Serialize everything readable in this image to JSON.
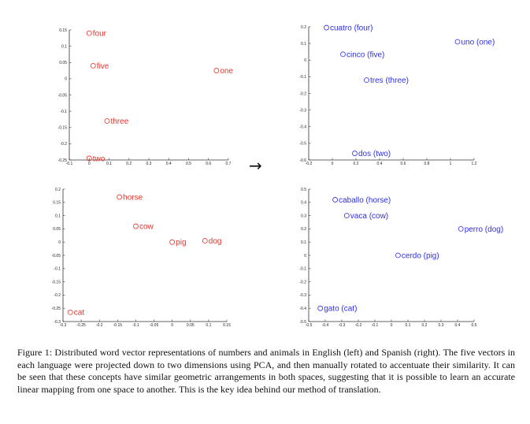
{
  "caption": "Figure 1: Distributed word vector representations of numbers and animals in English (left) and Spanish (right). The five vectors in each language were projected down to two dimensions using PCA, and then manually rotated to accentuate their similarity. It can be seen that these concepts have similar geometric arrangements in both spaces, suggesting that it is possible to learn an accurate linear mapping from one space to another. This is the key idea behind our method of translation.",
  "arrow_symbol": "→",
  "chart_data": [
    {
      "type": "scatter",
      "color": "#e8322a",
      "xlim": [
        -0.1,
        0.7
      ],
      "ylim": [
        -0.25,
        0.15
      ],
      "xticks": [
        {
          "v": -0.1,
          "t": "-0.1"
        },
        {
          "v": 0,
          "t": "0"
        },
        {
          "v": 0.1,
          "t": "0.1"
        },
        {
          "v": 0.2,
          "t": "0.2"
        },
        {
          "v": 0.3,
          "t": "0.3"
        },
        {
          "v": 0.4,
          "t": "0.4"
        },
        {
          "v": 0.5,
          "t": "0.5"
        },
        {
          "v": 0.6,
          "t": "0.6"
        },
        {
          "v": 0.7,
          "t": "0.7"
        }
      ],
      "yticks": [
        {
          "v": -0.25,
          "t": "-0.25"
        },
        {
          "v": -0.2,
          "t": "-0.2"
        },
        {
          "v": -0.15,
          "t": "-0.15"
        },
        {
          "v": -0.1,
          "t": "-0.1"
        },
        {
          "v": -0.05,
          "t": "-0.05"
        },
        {
          "v": 0,
          "t": "0"
        },
        {
          "v": 0.05,
          "t": "0.05"
        },
        {
          "v": 0.1,
          "t": "0.1"
        },
        {
          "v": 0.15,
          "t": "0.15"
        }
      ],
      "points": [
        {
          "label": "four",
          "x": 0.0,
          "y": 0.14
        },
        {
          "label": "five",
          "x": 0.02,
          "y": 0.04
        },
        {
          "label": "one",
          "x": 0.64,
          "y": 0.025
        },
        {
          "label": "three",
          "x": 0.09,
          "y": -0.13
        },
        {
          "label": "two",
          "x": 0.0,
          "y": -0.245
        }
      ]
    },
    {
      "type": "scatter",
      "color": "#2e2ee6",
      "xlim": [
        -0.2,
        1.2
      ],
      "ylim": [
        -0.6,
        0.2
      ],
      "xticks": [
        {
          "v": -0.2,
          "t": "-0.2"
        },
        {
          "v": 0,
          "t": "0"
        },
        {
          "v": 0.2,
          "t": "0.2"
        },
        {
          "v": 0.4,
          "t": "0.4"
        },
        {
          "v": 0.6,
          "t": "0.6"
        },
        {
          "v": 0.8,
          "t": "0.8"
        },
        {
          "v": 1,
          "t": "1"
        },
        {
          "v": 1.2,
          "t": "1.2"
        }
      ],
      "yticks": [
        {
          "v": -0.6,
          "t": "-0.6"
        },
        {
          "v": -0.5,
          "t": "-0.5"
        },
        {
          "v": -0.4,
          "t": "-0.4"
        },
        {
          "v": -0.3,
          "t": "-0.3"
        },
        {
          "v": -0.2,
          "t": "-0.2"
        },
        {
          "v": -0.1,
          "t": "-0.1"
        },
        {
          "v": 0,
          "t": "0"
        },
        {
          "v": 0.1,
          "t": "0.1"
        },
        {
          "v": 0.2,
          "t": "0.2"
        }
      ],
      "points": [
        {
          "label": "cuatro (four)",
          "x": -0.05,
          "y": 0.195
        },
        {
          "label": "uno (one)",
          "x": 1.06,
          "y": 0.11
        },
        {
          "label": "cinco (five)",
          "x": 0.09,
          "y": 0.035
        },
        {
          "label": "tres (three)",
          "x": 0.29,
          "y": -0.12
        },
        {
          "label": "dos (two)",
          "x": 0.19,
          "y": -0.56
        }
      ]
    },
    {
      "type": "scatter",
      "color": "#e8322a",
      "xlim": [
        -0.3,
        0.15
      ],
      "ylim": [
        -0.3,
        0.2
      ],
      "xticks": [
        {
          "v": -0.3,
          "t": "-0.3"
        },
        {
          "v": -0.25,
          "t": "-0.25"
        },
        {
          "v": -0.2,
          "t": "-0.2"
        },
        {
          "v": -0.15,
          "t": "-0.15"
        },
        {
          "v": -0.1,
          "t": "-0.1"
        },
        {
          "v": -0.05,
          "t": "-0.05"
        },
        {
          "v": 0,
          "t": "0"
        },
        {
          "v": 0.05,
          "t": "0.05"
        },
        {
          "v": 0.1,
          "t": "0.1"
        },
        {
          "v": 0.15,
          "t": "0.15"
        }
      ],
      "yticks": [
        {
          "v": -0.3,
          "t": "-0.3"
        },
        {
          "v": -0.25,
          "t": "-0.25"
        },
        {
          "v": -0.2,
          "t": "-0.2"
        },
        {
          "v": -0.15,
          "t": "-0.15"
        },
        {
          "v": -0.1,
          "t": "-0.1"
        },
        {
          "v": -0.05,
          "t": "-0.05"
        },
        {
          "v": 0,
          "t": "0"
        },
        {
          "v": 0.05,
          "t": "0.05"
        },
        {
          "v": 0.1,
          "t": "0.1"
        },
        {
          "v": 0.15,
          "t": "0.15"
        },
        {
          "v": 0.2,
          "t": "0.2"
        }
      ],
      "points": [
        {
          "label": "horse",
          "x": -0.145,
          "y": 0.17
        },
        {
          "label": "cow",
          "x": -0.1,
          "y": 0.06
        },
        {
          "label": "pig",
          "x": 0.0,
          "y": 0.0
        },
        {
          "label": "dog",
          "x": 0.09,
          "y": 0.005
        },
        {
          "label": "cat",
          "x": -0.28,
          "y": -0.265
        }
      ]
    },
    {
      "type": "scatter",
      "color": "#2e2ee6",
      "xlim": [
        -0.5,
        0.5
      ],
      "ylim": [
        -0.5,
        0.5
      ],
      "xticks": [
        {
          "v": -0.5,
          "t": "-0.5"
        },
        {
          "v": -0.4,
          "t": "-0.4"
        },
        {
          "v": -0.3,
          "t": "-0.3"
        },
        {
          "v": -0.2,
          "t": "-0.2"
        },
        {
          "v": -0.1,
          "t": "-0.1"
        },
        {
          "v": 0,
          "t": "0"
        },
        {
          "v": 0.1,
          "t": "0.1"
        },
        {
          "v": 0.2,
          "t": "0.2"
        },
        {
          "v": 0.3,
          "t": "0.3"
        },
        {
          "v": 0.4,
          "t": "0.4"
        },
        {
          "v": 0.5,
          "t": "0.5"
        }
      ],
      "yticks": [
        {
          "v": -0.5,
          "t": "-0.5"
        },
        {
          "v": -0.4,
          "t": "-0.4"
        },
        {
          "v": -0.3,
          "t": "-0.3"
        },
        {
          "v": -0.2,
          "t": "-0.2"
        },
        {
          "v": -0.1,
          "t": "-0.1"
        },
        {
          "v": 0,
          "t": "0"
        },
        {
          "v": 0.1,
          "t": "0.1"
        },
        {
          "v": 0.2,
          "t": "0.2"
        },
        {
          "v": 0.3,
          "t": "0.3"
        },
        {
          "v": 0.4,
          "t": "0.4"
        },
        {
          "v": 0.5,
          "t": "0.5"
        }
      ],
      "points": [
        {
          "label": "caballo (horse)",
          "x": -0.34,
          "y": 0.42
        },
        {
          "label": "vaca (cow)",
          "x": -0.27,
          "y": 0.3
        },
        {
          "label": "perro (dog)",
          "x": 0.42,
          "y": 0.2
        },
        {
          "label": "cerdo (pig)",
          "x": 0.04,
          "y": 0.0
        },
        {
          "label": "gato (cat)",
          "x": -0.43,
          "y": -0.4
        }
      ]
    }
  ]
}
